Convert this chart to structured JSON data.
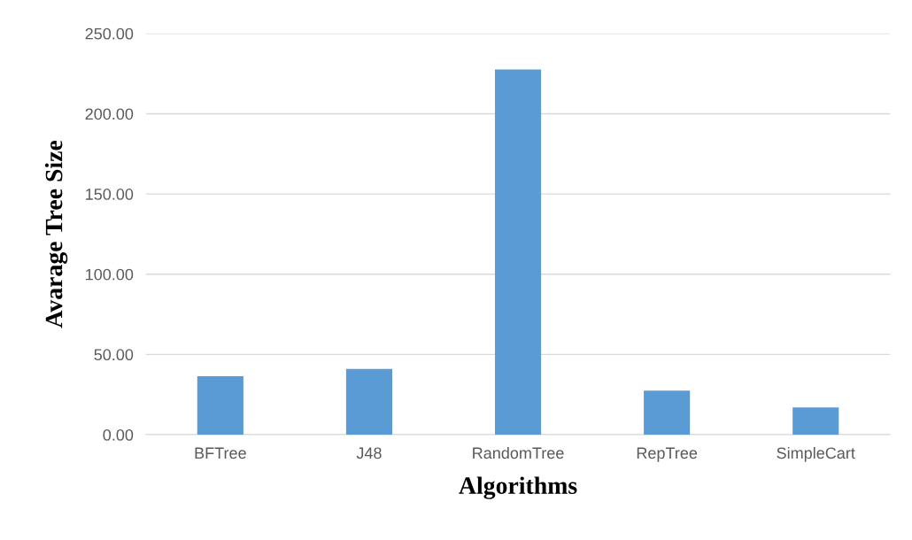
{
  "chart_data": {
    "type": "bar",
    "xlabel": "Algorithms",
    "ylabel": "Avarage Tree Size",
    "categories": [
      "BFTree",
      "J48",
      "RandomTree",
      "RepTree",
      "SimpleCart"
    ],
    "values": [
      36.5,
      41,
      227.5,
      27.5,
      17
    ],
    "color": "#5b9bd5",
    "ylim": [
      0,
      250
    ],
    "yticks": [
      {
        "value": 0,
        "label": "0.00"
      },
      {
        "value": 50,
        "label": "50.00"
      },
      {
        "value": 100,
        "label": "100.00"
      },
      {
        "value": 150,
        "label": "150.00"
      },
      {
        "value": 200,
        "label": "200.00"
      },
      {
        "value": 250,
        "label": "250.00"
      }
    ],
    "grid": "y"
  }
}
